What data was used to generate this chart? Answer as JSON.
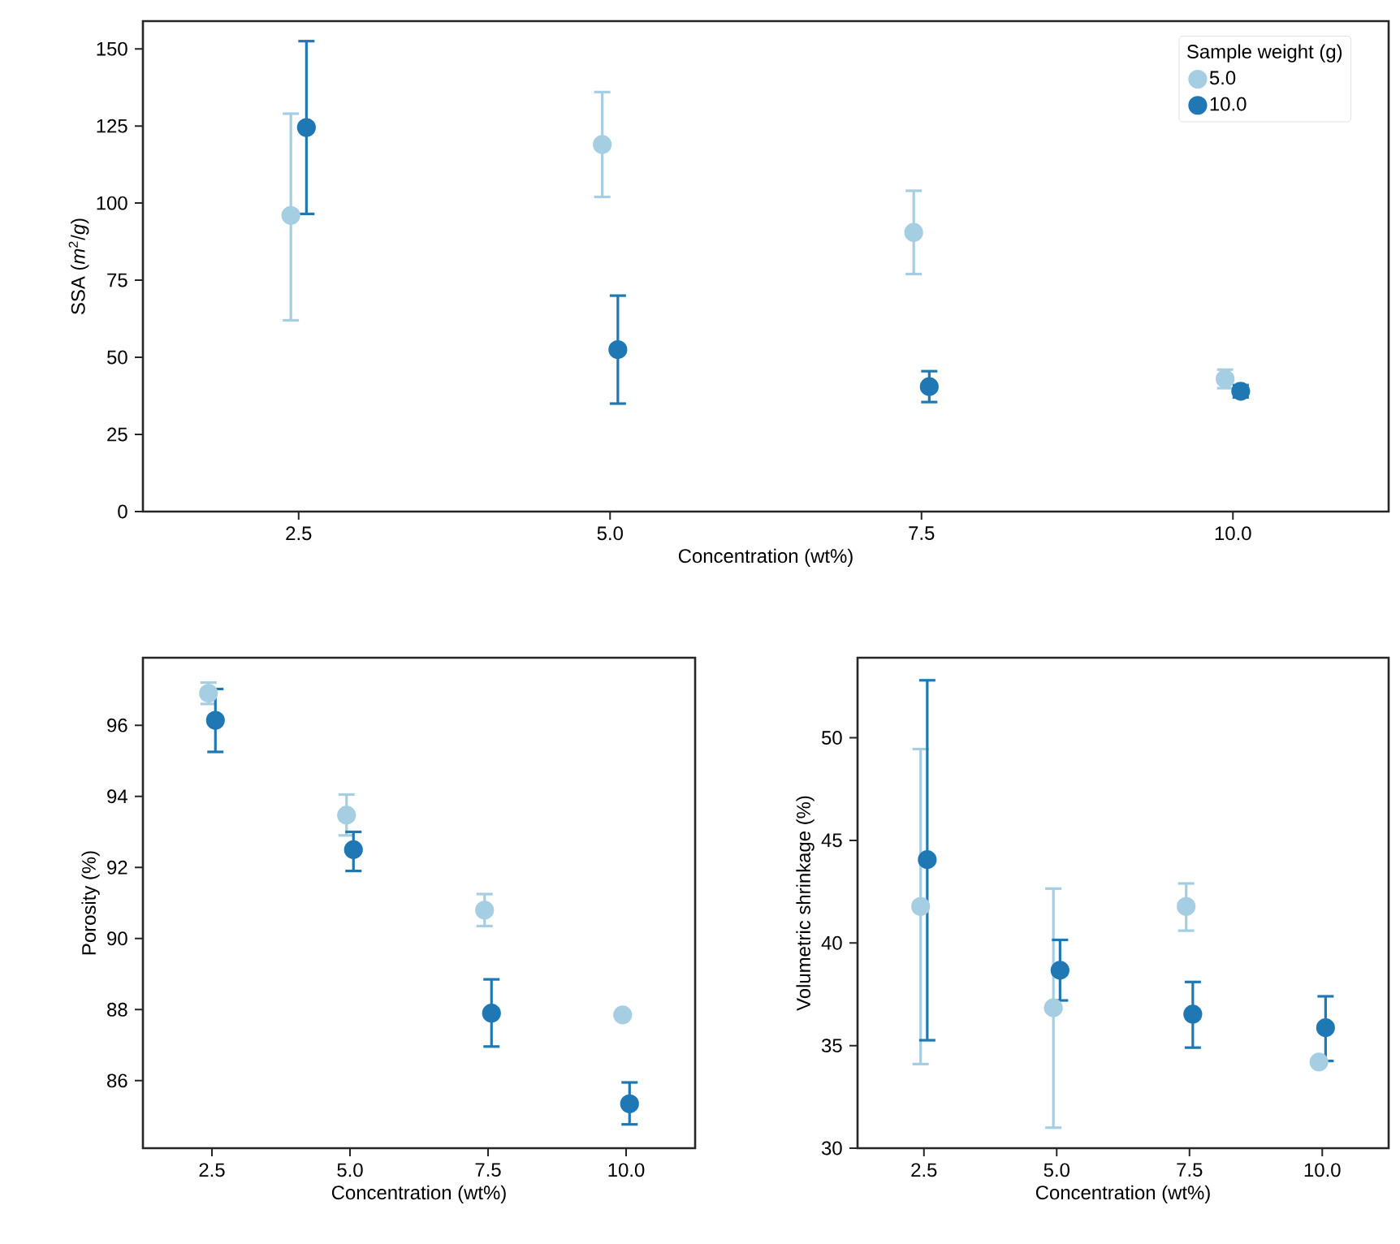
{
  "chart_data": [
    {
      "type": "scatter",
      "categories": [
        "2.5",
        "5.0",
        "7.5",
        "10.0"
      ],
      "xlabel": "Concentration (wt%)",
      "ylabel": "SSA (*m*$^{2}$/*g*)",
      "ylim": [
        0,
        159
      ],
      "yticks": [
        0,
        25,
        50,
        75,
        100,
        125,
        150
      ],
      "marker": "circle",
      "legend": "top right",
      "legend_title": "Sample weight (g)",
      "series": [
        {
          "name": "5.0",
          "color": "#a6cee3",
          "values": [
            96,
            119,
            90.5,
            43
          ],
          "errors": [
            [
              62,
              129
            ],
            [
              102,
              136
            ],
            [
              77,
              104
            ],
            [
              40,
              46
            ]
          ]
        },
        {
          "name": "10.0",
          "color": "#1f78b4",
          "values": [
            124.5,
            52.5,
            40.5,
            39
          ],
          "errors": [
            [
              96.5,
              152.5
            ],
            [
              35,
              70
            ],
            [
              35.5,
              45.5
            ],
            [
              37,
              41
            ]
          ]
        }
      ]
    },
    {
      "type": "scatter",
      "categories": [
        "2.5",
        "5.0",
        "7.5",
        "10.0"
      ],
      "xlabel": "Concentration (wt%)",
      "ylabel": "Porosity (%)",
      "ylim": [
        84.1,
        97.9
      ],
      "yticks": [
        86,
        88,
        90,
        92,
        94,
        96
      ],
      "marker": "circle",
      "series": [
        {
          "color": "#a6cee3",
          "values": [
            96.9,
            93.47,
            90.8,
            87.85
          ],
          "errors": [
            [
              96.6,
              97.2
            ],
            [
              92.9,
              94.05
            ],
            [
              90.35,
              91.25
            ],
            [
              87.8,
              87.9
            ]
          ]
        },
        {
          "color": "#1f78b4",
          "values": [
            96.14,
            92.5,
            87.9,
            85.35
          ],
          "errors": [
            [
              95.25,
              97.02
            ],
            [
              91.9,
              93.0
            ],
            [
              86.96,
              88.85
            ],
            [
              84.77,
              85.95
            ]
          ]
        }
      ]
    },
    {
      "type": "scatter",
      "categories": [
        "2.5",
        "5.0",
        "7.5",
        "10.0"
      ],
      "xlabel": "Concentration (wt%)",
      "ylabel": "Volumetric shrinkage (%)",
      "ylim": [
        30,
        53.9
      ],
      "yticks": [
        30,
        35,
        40,
        45,
        50
      ],
      "marker": "circle",
      "series": [
        {
          "color": "#a6cee3",
          "values": [
            41.78,
            36.84,
            41.78,
            34.2
          ],
          "errors": [
            [
              34.1,
              49.45
            ],
            [
              31.0,
              42.65
            ],
            [
              40.6,
              42.9
            ],
            null
          ]
        },
        {
          "color": "#1f78b4",
          "values": [
            44.06,
            38.67,
            36.53,
            35.87
          ],
          "errors": [
            [
              35.26,
              52.8
            ],
            [
              37.2,
              40.15
            ],
            [
              34.9,
              38.1
            ],
            [
              34.25,
              37.4
            ]
          ]
        }
      ]
    }
  ]
}
